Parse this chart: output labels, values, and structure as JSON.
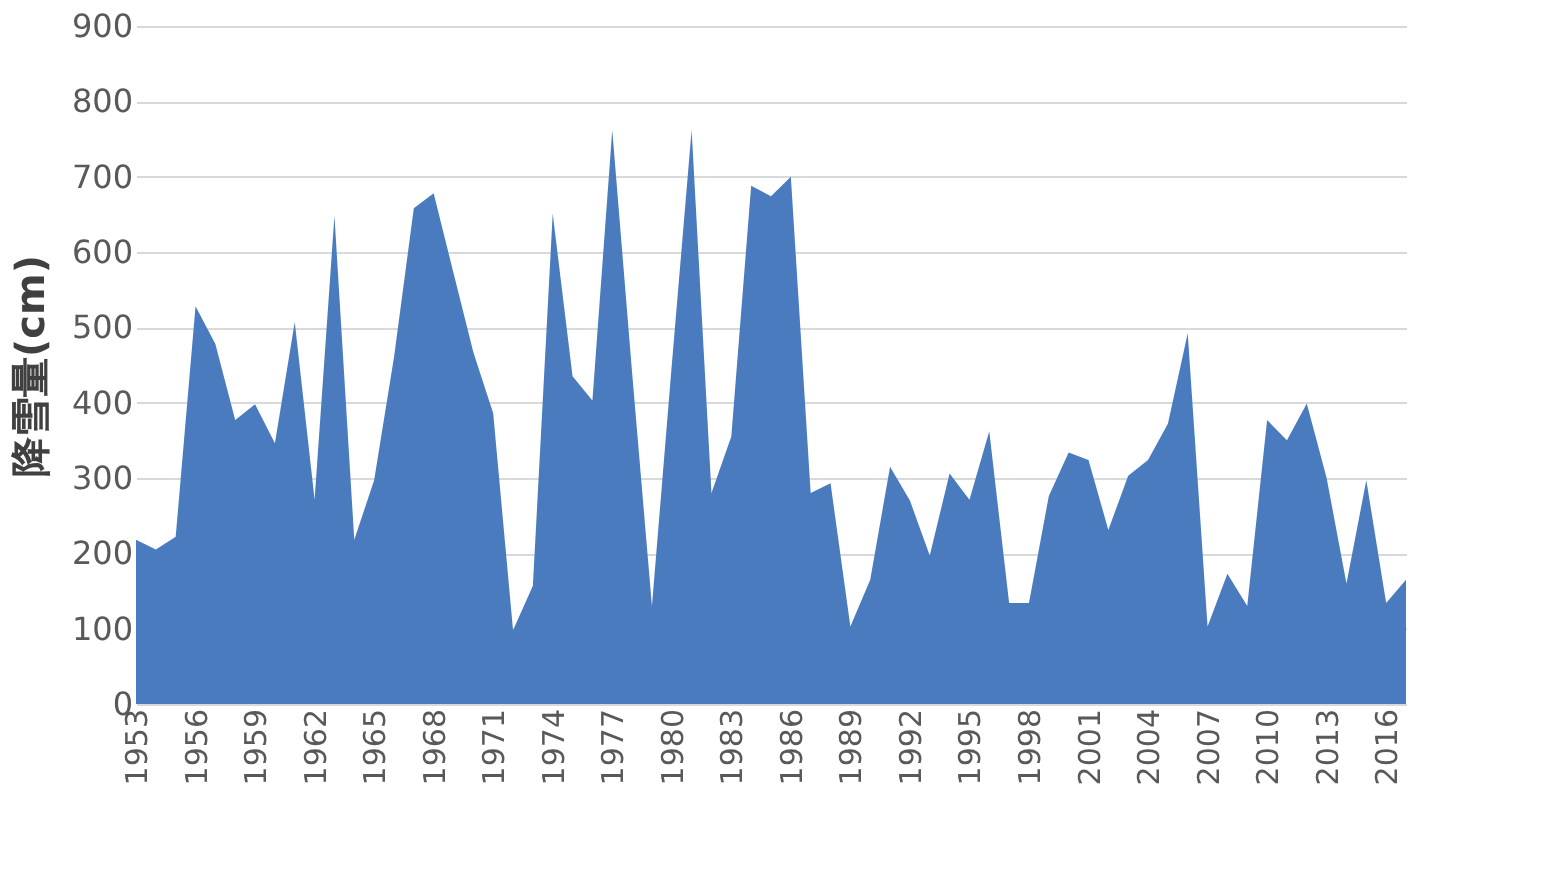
{
  "chart_data": {
    "type": "area",
    "ylabel": "降雪量(cm)",
    "categories": [
      "1953",
      null,
      null,
      "1956",
      null,
      null,
      "1959",
      null,
      null,
      "1962",
      null,
      null,
      "1965",
      null,
      null,
      "1968",
      null,
      null,
      "1971",
      null,
      null,
      "1974",
      null,
      null,
      "1977",
      null,
      null,
      "1980",
      null,
      null,
      "1983",
      null,
      null,
      "1986",
      null,
      null,
      "1989",
      null,
      null,
      "1992",
      null,
      null,
      "1995",
      null,
      null,
      "1998",
      null,
      null,
      "2001",
      null,
      null,
      "2004",
      null,
      null,
      "2007",
      null,
      null,
      "2010",
      null,
      null,
      "2013",
      null,
      null,
      "2016",
      null
    ],
    "series": [
      {
        "color": "#4a7bbf",
        "values": [
          218,
          205,
          222,
          528,
          478,
          377,
          398,
          346,
          507,
          271,
          648,
          218,
          297,
          460,
          658,
          678,
          572,
          467,
          386,
          98,
          157,
          651,
          435,
          403,
          762,
          440,
          130,
          450,
          762,
          280,
          355,
          688,
          674,
          700,
          280,
          293,
          103,
          165,
          315,
          270,
          197,
          306,
          271,
          362,
          134,
          134,
          276,
          334,
          324,
          231,
          303,
          324,
          372,
          492,
          103,
          173,
          130,
          377,
          350,
          399,
          300,
          160,
          297,
          134,
          165
        ]
      }
    ],
    "ylim": [
      0,
      900
    ],
    "yticks": [
      0,
      100,
      200,
      300,
      400,
      500,
      600,
      700,
      800,
      900
    ],
    "grid": "y"
  }
}
